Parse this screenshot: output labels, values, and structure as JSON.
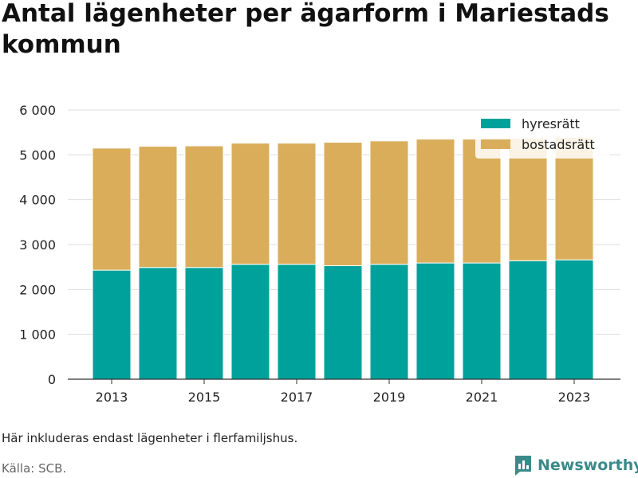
{
  "title": "Antal lägenheter per ägarform i Mariestads kommun",
  "note": "Här inkluderas endast lägenheter i flerfamiljshus.",
  "source": "Källa: SCB.",
  "brand": {
    "name": "Newsworthy",
    "logo_icon": "bar-chart-logo-icon"
  },
  "colors": {
    "hyresratt": "#00a19a",
    "bostadsratt": "#d9ad5a",
    "brand": "#3b8a8a"
  },
  "chart_data": {
    "type": "bar",
    "stacked": true,
    "title": "Antal lägenheter per ägarform i Mariestads kommun",
    "xlabel": "",
    "ylabel": "",
    "categories": [
      2013,
      2014,
      2015,
      2016,
      2017,
      2018,
      2019,
      2020,
      2021,
      2022,
      2023
    ],
    "x_tick_labels": [
      "2013",
      "2015",
      "2017",
      "2019",
      "2021",
      "2023"
    ],
    "y_ticks": [
      0,
      1000,
      2000,
      3000,
      4000,
      5000,
      6000
    ],
    "y_tick_labels": [
      "0",
      "1 000",
      "2 000",
      "3 000",
      "4 000",
      "5 000",
      "6 000"
    ],
    "ylim": [
      0,
      6000
    ],
    "grid": true,
    "legend_position": "top-right",
    "series": [
      {
        "name": "hyresrätt",
        "color": "#00a19a",
        "values": [
          2430,
          2490,
          2490,
          2560,
          2560,
          2530,
          2560,
          2590,
          2590,
          2640,
          2660
        ]
      },
      {
        "name": "bostadsrätt",
        "color": "#d9ad5a",
        "values": [
          2720,
          2700,
          2710,
          2700,
          2700,
          2750,
          2750,
          2760,
          2760,
          2730,
          2730
        ]
      }
    ]
  }
}
